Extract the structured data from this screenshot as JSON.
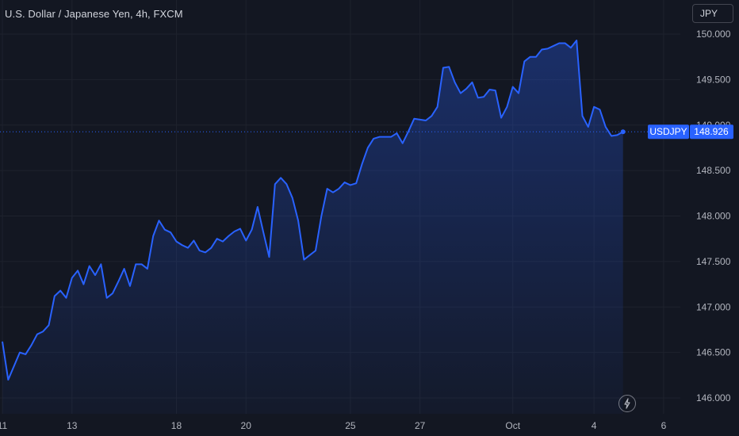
{
  "header": {
    "title": "U.S. Dollar / Japanese Yen, 4h, FXCM",
    "currency_button": "JPY"
  },
  "price_tag": {
    "symbol": "USDJPY",
    "price": "148.926"
  },
  "colors": {
    "background": "#131722",
    "line": "#2962ff",
    "grid": "#1e222d",
    "tag": "#2962ff",
    "axis_text": "#b2b5be"
  },
  "icons": {
    "flash": "lightning-bolt-icon"
  },
  "chart_data": {
    "type": "area",
    "title": "U.S. Dollar / Japanese Yen, 4h, FXCM",
    "xlabel": "",
    "ylabel": "",
    "ylim": [
      145.9,
      150.3
    ],
    "y_ticks": [
      "146.000",
      "146.500",
      "147.000",
      "147.500",
      "148.000",
      "148.500",
      "149.000",
      "149.500",
      "150.000"
    ],
    "x_ticks": [
      {
        "label": "11",
        "index": 0
      },
      {
        "label": "13",
        "index": 12
      },
      {
        "label": "18",
        "index": 30
      },
      {
        "label": "20",
        "index": 42
      },
      {
        "label": "25",
        "index": 60
      },
      {
        "label": "27",
        "index": 72
      },
      {
        "label": "Oct",
        "index": 88
      },
      {
        "label": "4",
        "index": 102
      },
      {
        "label": "6",
        "index": 114
      }
    ],
    "grid": true,
    "last_value": 148.926,
    "series": [
      {
        "values": [
          146.62,
          146.2,
          146.35,
          146.5,
          146.48,
          146.58,
          146.7,
          146.73,
          146.8,
          147.12,
          147.18,
          147.1,
          147.32,
          147.4,
          147.25,
          147.45,
          147.35,
          147.47,
          147.1,
          147.15,
          147.28,
          147.42,
          147.23,
          147.47,
          147.47,
          147.42,
          147.78,
          147.95,
          147.85,
          147.82,
          147.72,
          147.68,
          147.65,
          147.73,
          147.62,
          147.6,
          147.65,
          147.75,
          147.72,
          147.78,
          147.83,
          147.86,
          147.73,
          147.85,
          148.1,
          147.82,
          147.55,
          148.35,
          148.42,
          148.35,
          148.2,
          147.95,
          147.52,
          147.57,
          147.62,
          148.0,
          148.3,
          148.26,
          148.3,
          148.37,
          148.34,
          148.36,
          148.57,
          148.75,
          148.85,
          148.87,
          148.87,
          148.87,
          148.91,
          148.8,
          148.93,
          149.07,
          149.06,
          149.05,
          149.1,
          149.2,
          149.63,
          149.64,
          149.47,
          149.35,
          149.4,
          149.47,
          149.3,
          149.31,
          149.39,
          149.38,
          149.08,
          149.2,
          149.42,
          149.35,
          149.7,
          149.75,
          149.75,
          149.83,
          149.84,
          149.87,
          149.9,
          149.9,
          149.85,
          149.93,
          149.1,
          148.98,
          149.2,
          149.17,
          148.98,
          148.88,
          148.89,
          148.926
        ]
      }
    ]
  }
}
